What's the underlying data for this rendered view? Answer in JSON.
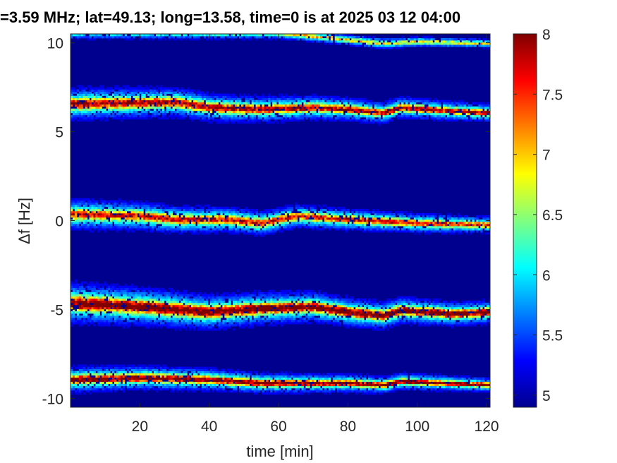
{
  "chart_data": {
    "type": "heatmap",
    "title": "=3.59 MHz;  lat=49.13; long=13.58, time=0 is at 2025 03 12 04:00",
    "xlabel": "time [min]",
    "ylabel": "Δf [Hz]",
    "xlim": [
      0,
      121
    ],
    "ylim": [
      -10.5,
      10.5
    ],
    "x_ticks": [
      20,
      40,
      60,
      80,
      100,
      120
    ],
    "y_ticks": [
      10,
      5,
      0,
      -5,
      -10
    ],
    "colorbar": {
      "range": [
        4.9,
        8
      ],
      "ticks": [
        8,
        7.5,
        7,
        6.5,
        6,
        5.5,
        5
      ],
      "colormap": "jet"
    },
    "background_color": "#00008f",
    "bands": [
      {
        "name": "top",
        "center": [
          [
            0,
            10.6
          ],
          [
            60,
            10.5
          ],
          [
            90,
            9.9
          ],
          [
            100,
            10.0
          ],
          [
            121,
            9.9
          ]
        ],
        "width": 0.35,
        "peak": 6.3
      },
      {
        "name": "+6 Hz",
        "center": [
          [
            0,
            6.5
          ],
          [
            30,
            6.6
          ],
          [
            40,
            6.3
          ],
          [
            55,
            6.2
          ],
          [
            70,
            6.3
          ],
          [
            80,
            6.2
          ],
          [
            90,
            6.0
          ],
          [
            95,
            6.3
          ],
          [
            110,
            6.1
          ],
          [
            121,
            6.0
          ]
        ],
        "width": 0.75,
        "peak": 7.3
      },
      {
        "name": "0 Hz",
        "center": [
          [
            0,
            0.3
          ],
          [
            20,
            0.2
          ],
          [
            30,
            0.0
          ],
          [
            45,
            0.0
          ],
          [
            55,
            -0.2
          ],
          [
            65,
            0.2
          ],
          [
            80,
            0.0
          ],
          [
            100,
            -0.2
          ],
          [
            121,
            -0.3
          ]
        ],
        "width": 0.7,
        "peak": 7.0
      },
      {
        "name": "-5 Hz",
        "center": [
          [
            0,
            -4.7
          ],
          [
            20,
            -4.9
          ],
          [
            40,
            -5.2
          ],
          [
            55,
            -5.0
          ],
          [
            70,
            -4.9
          ],
          [
            80,
            -5.2
          ],
          [
            90,
            -5.4
          ],
          [
            95,
            -5.1
          ],
          [
            110,
            -5.3
          ],
          [
            121,
            -5.2
          ]
        ],
        "width": 0.95,
        "peak": 7.8
      },
      {
        "name": "-9 Hz",
        "center": [
          [
            0,
            -9.0
          ],
          [
            20,
            -8.9
          ],
          [
            40,
            -9.0
          ],
          [
            55,
            -9.2
          ],
          [
            80,
            -9.2
          ],
          [
            90,
            -9.3
          ],
          [
            95,
            -9.1
          ],
          [
            121,
            -9.3
          ]
        ],
        "width": 0.6,
        "peak": 7.6
      }
    ]
  }
}
